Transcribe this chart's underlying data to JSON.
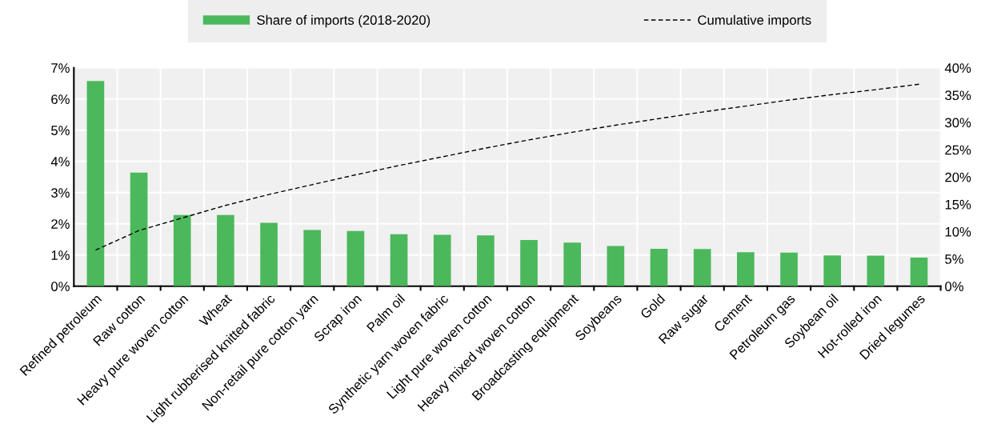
{
  "chart_data": {
    "type": "bar",
    "categories": [
      "Refined petroleum",
      "Raw cotton",
      "Heavy pure woven cotton",
      "Wheat",
      "Light rubberised knitted fabric",
      "Non-retail pure cotton yarn",
      "Scrap iron",
      "Palm oil",
      "Synthetic yarn woven fabric",
      "Light pure woven cotton",
      "Heavy mixed woven cotton",
      "Broadcasting equipment",
      "Soybeans",
      "Gold",
      "Raw sugar",
      "Cement",
      "Petroleum gas",
      "Soybean oil",
      "Hot-rolled iron",
      "Dried legumes"
    ],
    "series": [
      {
        "name": "Share of imports (2018-2020)",
        "color": "#4cb85c",
        "values": [
          6.58,
          3.64,
          2.28,
          2.28,
          2.03,
          1.8,
          1.77,
          1.67,
          1.65,
          1.63,
          1.48,
          1.4,
          1.29,
          1.2,
          1.19,
          1.09,
          1.08,
          0.99,
          0.98,
          0.92
        ]
      },
      {
        "name": "Cumulative imports",
        "type": "line",
        "axis": "y2",
        "color": "#000000",
        "line_style": "dashed",
        "values": [
          6.6,
          10.2,
          12.5,
          14.8,
          16.8,
          18.6,
          20.4,
          22.1,
          23.7,
          25.3,
          26.8,
          28.2,
          29.5,
          30.7,
          31.9,
          33.0,
          34.1,
          35.1,
          36.0,
          37.0
        ]
      }
    ],
    "ylim": [
      0,
      7
    ],
    "yticks": [
      {
        "value": 0,
        "label": "0%"
      },
      {
        "value": 1,
        "label": "1%"
      },
      {
        "value": 2,
        "label": "2%"
      },
      {
        "value": 3,
        "label": "3%"
      },
      {
        "value": 4,
        "label": "4%"
      },
      {
        "value": 5,
        "label": "5%"
      },
      {
        "value": 6,
        "label": "6%"
      },
      {
        "value": 7,
        "label": "7%"
      }
    ],
    "y2lim": [
      0,
      40
    ],
    "y2ticks": [
      {
        "value": 0,
        "label": "0%"
      },
      {
        "value": 5,
        "label": "5%"
      },
      {
        "value": 10,
        "label": "10%"
      },
      {
        "value": 15,
        "label": "15%"
      },
      {
        "value": 20,
        "label": "20%"
      },
      {
        "value": 25,
        "label": "25%"
      },
      {
        "value": 30,
        "label": "30%"
      },
      {
        "value": 35,
        "label": "35%"
      },
      {
        "value": 40,
        "label": "40%"
      }
    ],
    "grid": true,
    "legend": "top"
  }
}
